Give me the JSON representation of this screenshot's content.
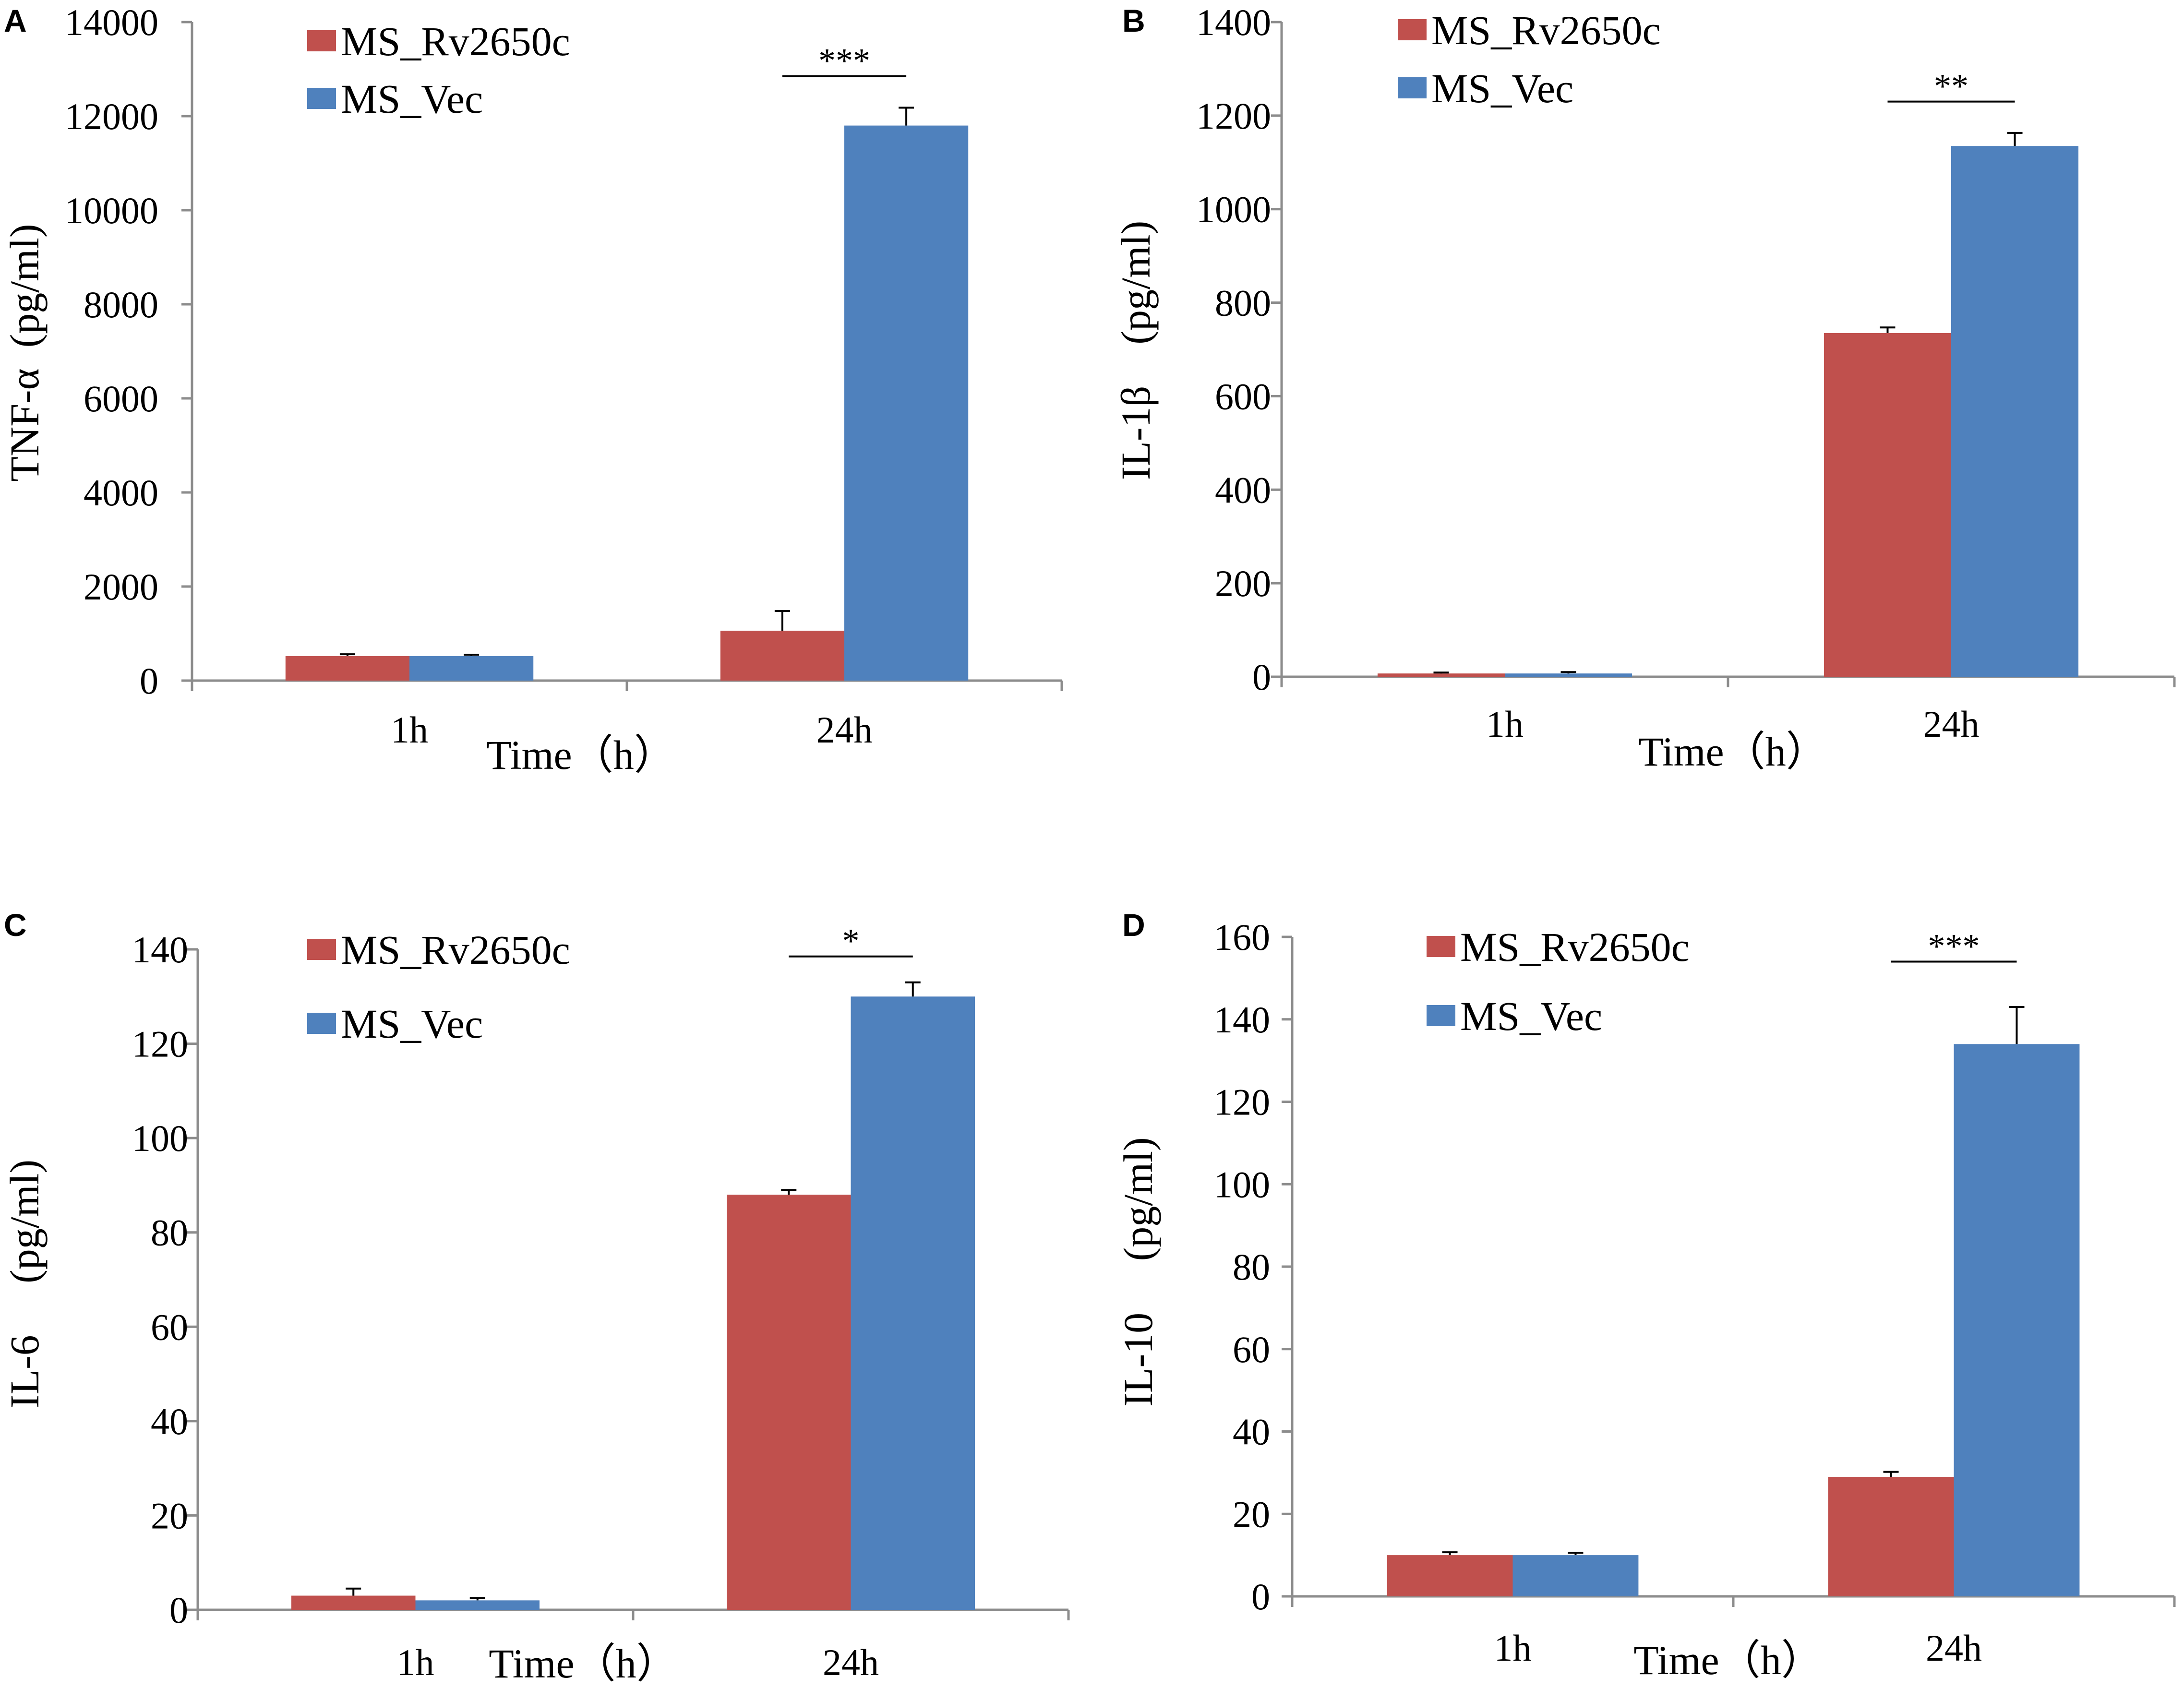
{
  "colors": {
    "series_red": "#C0504D",
    "series_blue": "#4F81BD"
  },
  "chart_data": [
    {
      "panel": "A",
      "type": "bar",
      "categories": [
        "1h",
        "24h"
      ],
      "series": [
        {
          "name": "MS_Rv2650c",
          "values": [
            520,
            1060
          ],
          "errors": [
            40,
            420
          ]
        },
        {
          "name": "MS_Vec",
          "values": [
            520,
            11800
          ],
          "errors": [
            30,
            380
          ]
        }
      ],
      "xlabel": "Time（h）",
      "ylabel": "TNF-α  (pg/ml)",
      "ylim": [
        0,
        14000
      ],
      "yticks": [
        0,
        2000,
        4000,
        6000,
        8000,
        10000,
        12000,
        14000
      ],
      "significance": {
        "category": "24h",
        "label": "***",
        "y": 12850
      },
      "legend": "top-left"
    },
    {
      "panel": "B",
      "type": "bar",
      "categories": [
        "1h",
        "24h"
      ],
      "series": [
        {
          "name": "MS_Rv2650c",
          "values": [
            7,
            735
          ],
          "errors": [
            2,
            12
          ]
        },
        {
          "name": "MS_Vec",
          "values": [
            7,
            1135
          ],
          "errors": [
            3,
            28
          ]
        }
      ],
      "xlabel": "Time（h）",
      "ylabel": "IL-1β    (pg/ml)",
      "ylim": [
        0,
        1400
      ],
      "yticks": [
        0,
        200,
        400,
        600,
        800,
        1000,
        1200,
        1400
      ],
      "significance": {
        "category": "24h",
        "label": "**",
        "y": 1230
      },
      "legend": "top-left"
    },
    {
      "panel": "C",
      "type": "bar",
      "categories": [
        "1h",
        "24h"
      ],
      "series": [
        {
          "name": "MS_Rv2650c",
          "values": [
            3,
            88
          ],
          "errors": [
            1.5,
            1
          ]
        },
        {
          "name": "MS_Vec",
          "values": [
            2,
            130
          ],
          "errors": [
            0.5,
            3
          ]
        }
      ],
      "xlabel": "Time（h）",
      "ylabel": "IL-6     (pg/ml)",
      "ylim": [
        0,
        140
      ],
      "yticks": [
        0,
        20,
        40,
        60,
        80,
        100,
        120,
        140
      ],
      "significance": {
        "category": "24h",
        "label": "*",
        "y": 138.5
      },
      "legend": "top-left"
    },
    {
      "panel": "D",
      "type": "bar",
      "categories": [
        "1h",
        "24h"
      ],
      "series": [
        {
          "name": "MS_Rv2650c",
          "values": [
            10,
            29
          ],
          "errors": [
            0.7,
            1.2
          ]
        },
        {
          "name": "MS_Vec",
          "values": [
            10,
            134
          ],
          "errors": [
            0.6,
            9
          ]
        }
      ],
      "xlabel": "Time（h）",
      "ylabel": "IL-10     (pg/ml)",
      "ylim": [
        0,
        160
      ],
      "yticks": [
        0,
        20,
        40,
        60,
        80,
        100,
        120,
        140,
        160
      ],
      "significance": {
        "category": "24h",
        "label": "***",
        "y": 154
      },
      "legend": "top-left"
    }
  ]
}
